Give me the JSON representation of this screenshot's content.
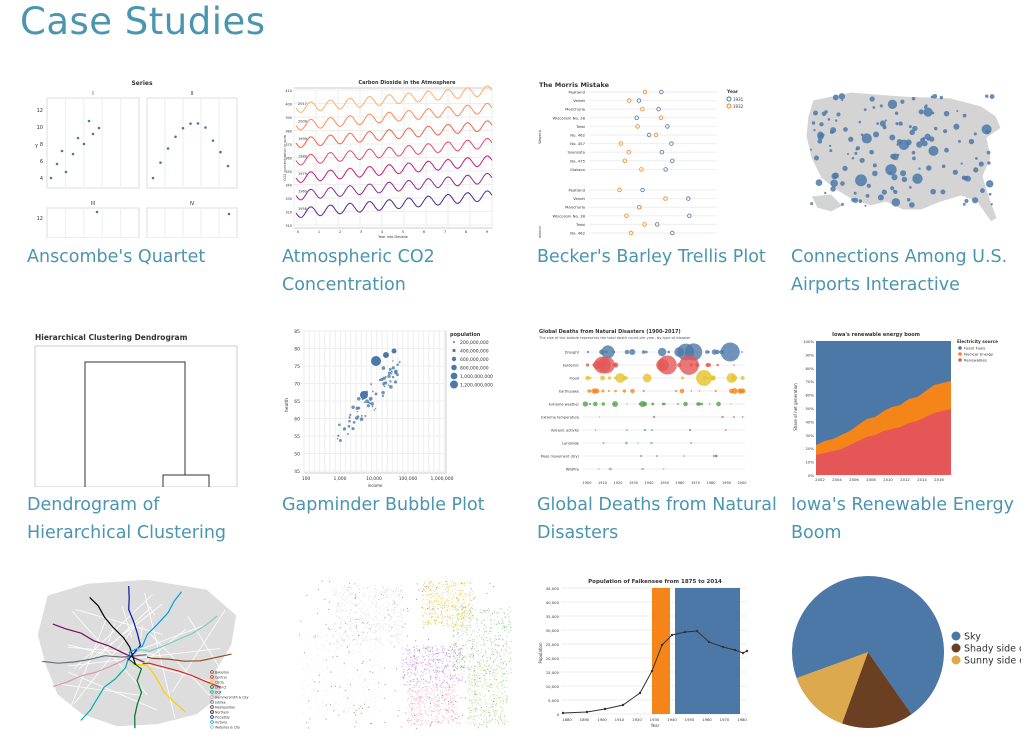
{
  "page": {
    "title": "Case Studies"
  },
  "cards": [
    {
      "label": "Anscombe's Quartet",
      "thumb": {
        "title": "Series",
        "panels": [
          "I",
          "II",
          "III",
          "IV"
        ],
        "yticks": [
          "12",
          "10",
          "8",
          "6",
          "4"
        ],
        "y2ticks": [
          "12"
        ],
        "ylabel": "Y"
      }
    },
    {
      "label": "Atmospheric CO2 Concentration",
      "thumb": {
        "title": "Carbon Dioxide in the Atmosphere",
        "xlabel": "Year into Decade",
        "ylabel": "CO2 concentration in ppm",
        "decades": [
          "2017",
          "2009",
          "1999",
          "1989",
          "1979",
          "1969",
          "1958"
        ],
        "yticks": [
          "410",
          "400",
          "390",
          "380",
          "370",
          "360",
          "350",
          "340",
          "330",
          "320",
          "310"
        ],
        "xticks": [
          "0",
          "1",
          "2",
          "3",
          "4",
          "5",
          "6",
          "7",
          "8",
          "9"
        ]
      }
    },
    {
      "label": "Becker's Barley Trellis Plot",
      "thumb": {
        "title": "The Morris Mistake",
        "legend_title": "Year",
        "legend": [
          "1931",
          "1932"
        ],
        "sites": [
          "Waseca",
          "Crookston"
        ],
        "varieties": [
          "Peatland",
          "Velvet",
          "Manchuria",
          "Wisconsin No. 38",
          "Trebi",
          "No. 462",
          "No. 457",
          "Svansota",
          "No. 475",
          "Glabron"
        ]
      }
    },
    {
      "label": "Connections Among U.S. Airports Interactive",
      "thumb": {}
    },
    {
      "label": "Dendrogram of Hierarchical Clustering",
      "thumb": {
        "title": "Hierarchical Clustering Dendrogram"
      }
    },
    {
      "label": "Gapminder Bubble Plot",
      "thumb": {
        "legend_title": "population",
        "legend": [
          "200,000,000",
          "400,000,000",
          "600,000,000",
          "800,000,000",
          "1,000,000,000",
          "1,200,000,000"
        ],
        "ylabel": "health",
        "xlabel": "income",
        "yticks": [
          "85",
          "80",
          "75",
          "70",
          "65",
          "60",
          "55",
          "50",
          "45"
        ],
        "xticks": [
          "100",
          "1,000",
          "10,000",
          "100,000",
          "1,000,000"
        ]
      }
    },
    {
      "label": "Global Deaths from Natural Disasters",
      "thumb": {
        "title": "Global Deaths from Natural Disasters (1900-2017)",
        "subtitle": "The size of the bubble represents the total death count per year, by type of disaster",
        "categories": [
          "Drought",
          "Epidemic",
          "Flood",
          "Earthquake",
          "Extreme weather",
          "Extreme temperature",
          "Volcanic activity",
          "Landslide",
          "Mass movement (dry)",
          "Wildfire"
        ],
        "xticks": [
          "1900",
          "1910",
          "1920",
          "1930",
          "1940",
          "1950",
          "1960",
          "1970",
          "1980",
          "1990",
          "2000"
        ]
      }
    },
    {
      "label": "Iowa's Renewable Energy Boom",
      "thumb": {
        "title": "Iowa's renewable energy boom",
        "legend_title": "Electricity source",
        "legend": [
          "Fossil Fuels",
          "Nuclear Energy",
          "Renewables"
        ],
        "ylabel": "Share of net generation",
        "yticks": [
          "100%",
          "90%",
          "80%",
          "70%",
          "60%",
          "50%",
          "40%",
          "30%",
          "20%",
          "10%",
          "0%"
        ],
        "xticks": [
          "2002",
          "2004",
          "2006",
          "2008",
          "2010",
          "2012",
          "2014",
          "2016"
        ]
      }
    },
    {
      "label": "",
      "thumb": {
        "legend": [
          "Bakerloo",
          "Central",
          "Circle",
          "District",
          "DLR",
          "Hammersmith & City",
          "Jubilee",
          "Metropolitan",
          "Northern",
          "Piccadilly",
          "Victoria",
          "Waterloo & City"
        ]
      }
    },
    {
      "label": "",
      "thumb": {}
    },
    {
      "label": "",
      "thumb": {
        "title": "Population of Falkensee from 1875 to 2014",
        "ylabel": "Population",
        "xlabel": "Year",
        "yticks": [
          "45,000",
          "40,000",
          "35,000",
          "30,000",
          "25,000",
          "20,000",
          "15,000",
          "10,000",
          "5,000",
          "0"
        ],
        "xticks": [
          "1880",
          "1890",
          "1900",
          "1910",
          "1920",
          "1930",
          "1940",
          "1950",
          "1960",
          "1970",
          "1980"
        ]
      }
    },
    {
      "label": "",
      "thumb": {
        "legend": [
          "Sky",
          "Shady side of a pyramid",
          "Sunny side of a pyramid"
        ]
      }
    }
  ],
  "colors": {
    "link": "#4a95b0",
    "steelblue": "#4c78a8",
    "orange": "#f58518",
    "red": "#e45756",
    "brown": "#6b4022",
    "tan": "#dca94f"
  }
}
